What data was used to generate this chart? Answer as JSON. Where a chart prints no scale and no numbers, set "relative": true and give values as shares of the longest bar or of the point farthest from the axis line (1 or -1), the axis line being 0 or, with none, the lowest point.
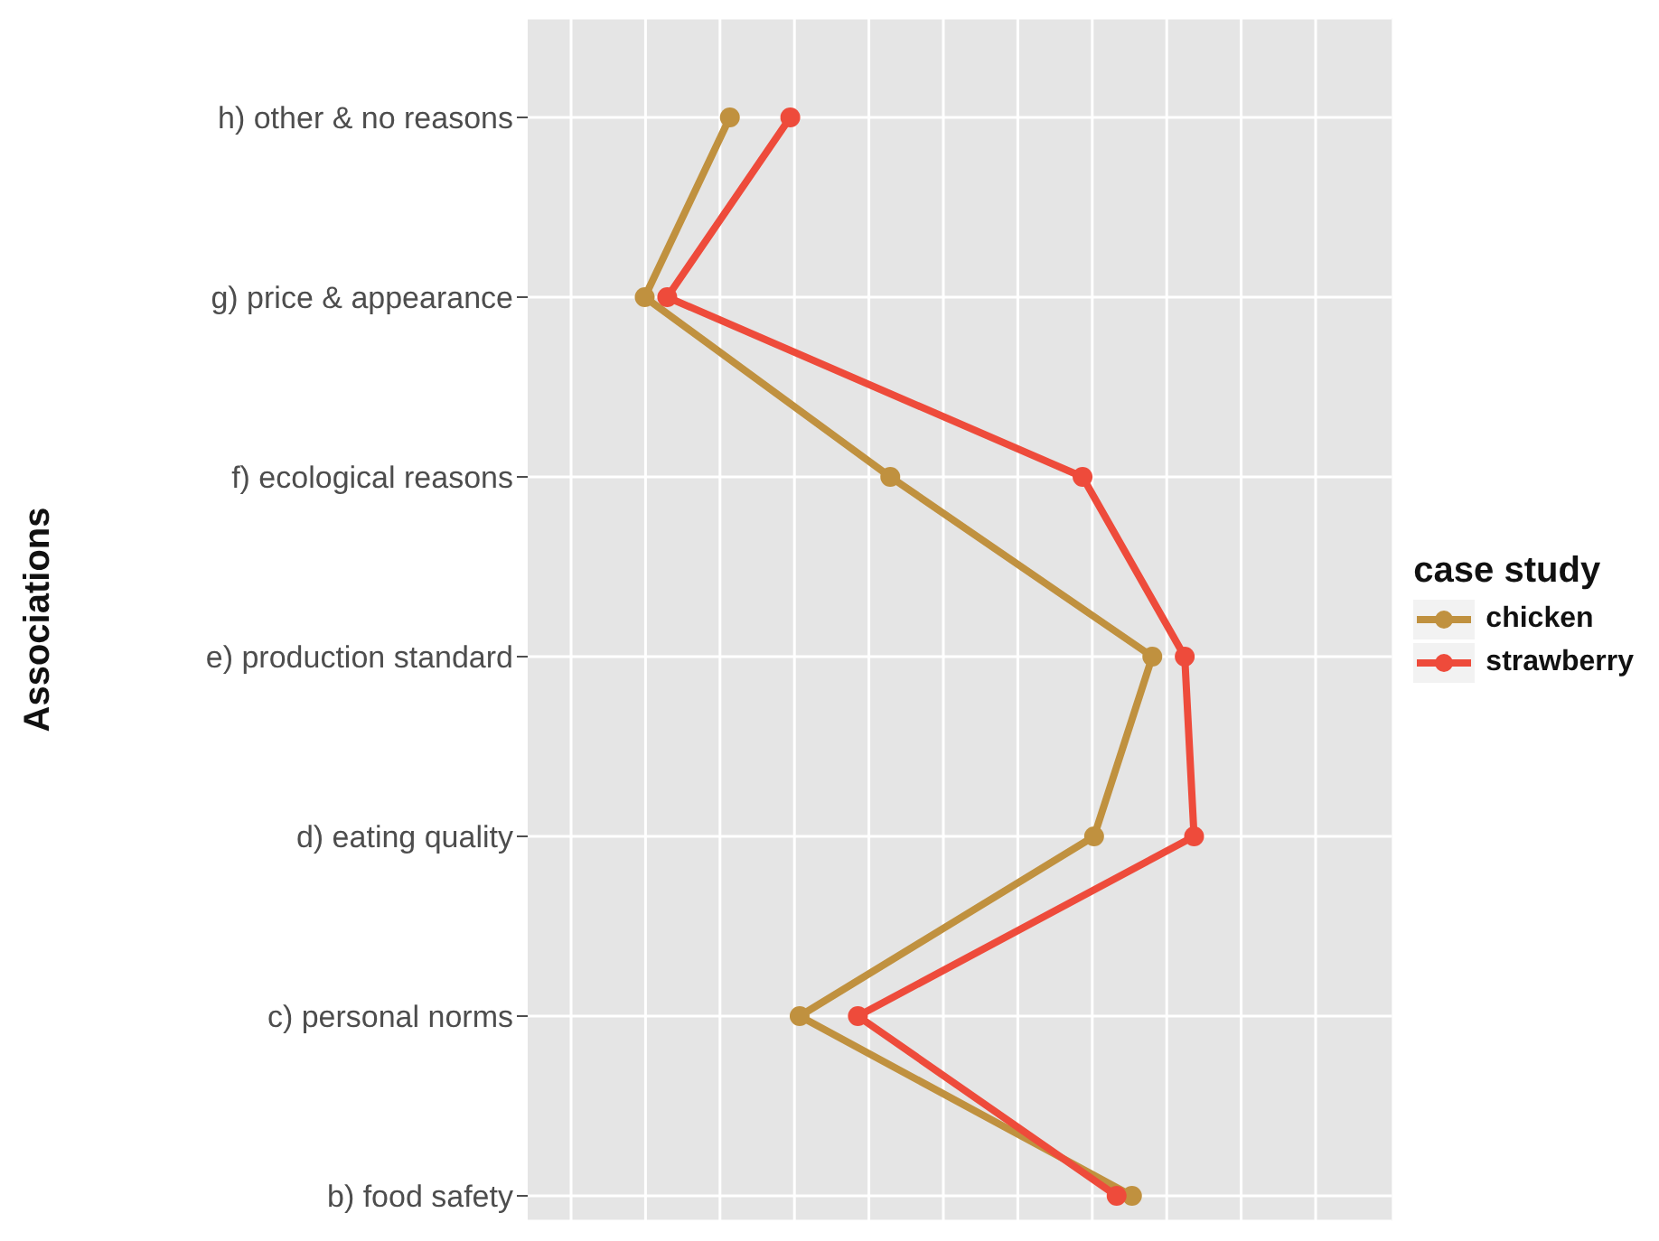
{
  "chart_data": {
    "type": "line",
    "orientation": "horizontal",
    "relative": true,
    "ylabel": "Associations",
    "legend_title": "case study",
    "legend": "right",
    "grid": true,
    "marker": "circle",
    "line_style": "solid",
    "categories": [
      "h) other & no reasons",
      "g) price & appearance",
      "f) ecological reasons",
      "e) production standard",
      "d) eating quality",
      "c) personal norms",
      "b) food safety"
    ],
    "series": [
      {
        "name": "chicken",
        "color": "#c0913f",
        "values": [
          0.155,
          0,
          0.447,
          0.924,
          0.818,
          0.282,
          0.887
        ]
      },
      {
        "name": "strawberry",
        "color": "#ee4b3b",
        "values": [
          0.265,
          0.041,
          0.797,
          0.983,
          1,
          0.388,
          0.859
        ]
      }
    ]
  }
}
